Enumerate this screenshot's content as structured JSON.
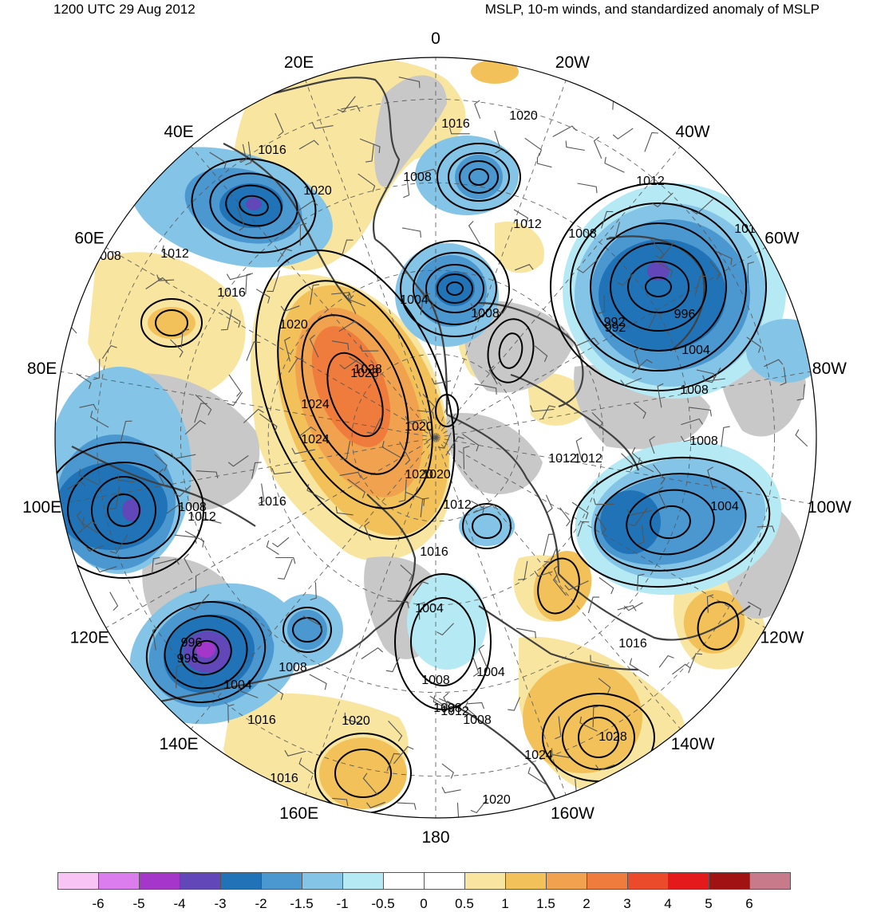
{
  "header": {
    "left_title": "1200 UTC 29 Aug 2012",
    "right_title": "MSLP, 10-m winds, and standardized anomaly of MSLP"
  },
  "map": {
    "projection": "north polar stereographic",
    "longitude_labels": [
      {
        "text": "0",
        "lon": 0
      },
      {
        "text": "20W",
        "lon": -20
      },
      {
        "text": "40W",
        "lon": -40
      },
      {
        "text": "60W",
        "lon": -60
      },
      {
        "text": "80W",
        "lon": -80
      },
      {
        "text": "100W",
        "lon": -100
      },
      {
        "text": "120W",
        "lon": -120
      },
      {
        "text": "140W",
        "lon": -140
      },
      {
        "text": "160W",
        "lon": -160
      },
      {
        "text": "180",
        "lon": 180
      },
      {
        "text": "160E",
        "lon": 160
      },
      {
        "text": "140E",
        "lon": 140
      },
      {
        "text": "120E",
        "lon": 120
      },
      {
        "text": "100E",
        "lon": 100
      },
      {
        "text": "80E",
        "lon": 80
      },
      {
        "text": "60E",
        "lon": 60
      },
      {
        "text": "40E",
        "lon": 40
      },
      {
        "text": "20E",
        "lon": 20
      }
    ],
    "isobar_labels": [
      "1016",
      "1020",
      "1016",
      "1020",
      "1008",
      "1012",
      "1016",
      "1012",
      "1008",
      "1004",
      "1008",
      "1012",
      "1008",
      "1016",
      "1020",
      "1028",
      "1024",
      "1024",
      "1020",
      "1020",
      "1016",
      "1012",
      "1008",
      "1004",
      "1008",
      "996",
      "992",
      "1004",
      "1008",
      "1012",
      "1008",
      "1004",
      "1012",
      "1016",
      "996",
      "1004",
      "1008",
      "1004",
      "1008",
      "1008",
      "1012",
      "1016",
      "1020",
      "1016",
      "1020",
      "1024",
      "1028",
      "1016",
      "1020",
      "1012"
    ],
    "pressure_centers": [
      {
        "type": "low",
        "label": "992"
      },
      {
        "type": "low",
        "label": "996"
      },
      {
        "type": "high",
        "label": "1028"
      }
    ]
  },
  "colorbar": {
    "ticks": [
      "-6",
      "-5",
      "-4",
      "-3",
      "-2",
      "-1.5",
      "-1",
      "-0.5",
      "0",
      "0.5",
      "1",
      "1.5",
      "2",
      "3",
      "4",
      "5",
      "6"
    ],
    "colors": [
      "#f7c4f3",
      "#dc7ded",
      "#a437c9",
      "#6247b9",
      "#1f73b6",
      "#4b97d0",
      "#84c4e6",
      "#b5eaf5",
      "#ffffff",
      "#ffffff",
      "#f8e6a0",
      "#f3c15a",
      "#f1a24e",
      "#ef7c3c",
      "#eb4b2b",
      "#e3191c",
      "#a11213",
      "#c77b8a"
    ]
  }
}
